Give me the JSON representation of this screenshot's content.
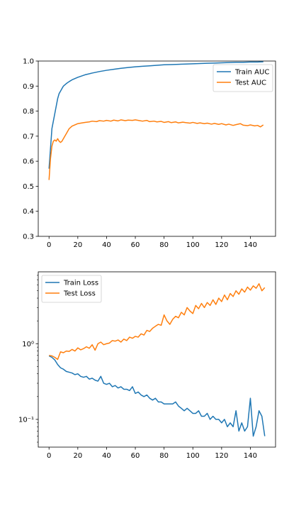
{
  "colors": {
    "series_1": "#1f77b4",
    "series_2": "#ff7f0e"
  },
  "chart_data": [
    {
      "type": "line",
      "title": "",
      "xlabel": "",
      "ylabel": "",
      "xlim": [
        -7.5,
        157.5
      ],
      "ylim": [
        0.3,
        1.0
      ],
      "yscale": "linear",
      "xticks": [
        0,
        20,
        40,
        60,
        80,
        100,
        120,
        140
      ],
      "yticks": [
        0.3,
        0.4,
        0.5,
        0.6,
        0.7,
        0.8,
        0.9,
        1.0
      ],
      "ytick_labels": [
        "0.3",
        "0.4",
        "0.5",
        "0.6",
        "0.7",
        "0.8",
        "0.9",
        "1.0"
      ],
      "legend": "top-right",
      "grid": false,
      "series": [
        {
          "name": "Train AUC",
          "color": "#1f77b4",
          "x": [
            0,
            1,
            2,
            3,
            4,
            5,
            6,
            7,
            8,
            9,
            10,
            12,
            14,
            16,
            18,
            20,
            25,
            30,
            35,
            40,
            45,
            50,
            55,
            60,
            65,
            70,
            75,
            80,
            85,
            90,
            95,
            100,
            105,
            110,
            115,
            120,
            125,
            130,
            135,
            140,
            145,
            149
          ],
          "y": [
            0.57,
            0.65,
            0.73,
            0.76,
            0.79,
            0.82,
            0.85,
            0.87,
            0.88,
            0.89,
            0.9,
            0.91,
            0.918,
            0.925,
            0.93,
            0.935,
            0.945,
            0.952,
            0.958,
            0.963,
            0.967,
            0.971,
            0.974,
            0.977,
            0.979,
            0.981,
            0.983,
            0.985,
            0.986,
            0.987,
            0.988,
            0.989,
            0.99,
            0.991,
            0.992,
            0.993,
            0.994,
            0.995,
            0.995,
            0.996,
            0.996,
            0.997
          ]
        },
        {
          "name": "Test AUC",
          "color": "#ff7f0e",
          "x": [
            0,
            1,
            2,
            3,
            4,
            5,
            6,
            7,
            8,
            9,
            10,
            12,
            14,
            16,
            18,
            20,
            22,
            25,
            28,
            30,
            33,
            35,
            38,
            40,
            43,
            45,
            48,
            50,
            53,
            55,
            58,
            60,
            63,
            65,
            68,
            70,
            73,
            75,
            78,
            80,
            83,
            85,
            88,
            90,
            93,
            95,
            98,
            100,
            103,
            105,
            108,
            110,
            113,
            115,
            118,
            120,
            123,
            125,
            128,
            130,
            133,
            135,
            138,
            140,
            143,
            145,
            147,
            149
          ],
          "y": [
            0.525,
            0.61,
            0.66,
            0.68,
            0.685,
            0.68,
            0.69,
            0.68,
            0.675,
            0.68,
            0.69,
            0.71,
            0.73,
            0.74,
            0.745,
            0.75,
            0.752,
            0.755,
            0.757,
            0.76,
            0.758,
            0.762,
            0.76,
            0.763,
            0.76,
            0.764,
            0.761,
            0.765,
            0.762,
            0.764,
            0.763,
            0.765,
            0.762,
            0.76,
            0.763,
            0.758,
            0.76,
            0.757,
            0.759,
            0.755,
            0.758,
            0.754,
            0.757,
            0.753,
            0.756,
            0.754,
            0.752,
            0.755,
            0.751,
            0.753,
            0.75,
            0.752,
            0.748,
            0.751,
            0.747,
            0.75,
            0.745,
            0.748,
            0.743,
            0.746,
            0.75,
            0.744,
            0.742,
            0.745,
            0.741,
            0.743,
            0.737,
            0.745
          ]
        }
      ]
    },
    {
      "type": "line",
      "title": "",
      "xlabel": "",
      "ylabel": "",
      "xlim": [
        -7.5,
        157.5
      ],
      "ylim": [
        0.043,
        8.9
      ],
      "yscale": "log",
      "xticks": [
        0,
        20,
        40,
        60,
        80,
        100,
        120,
        140
      ],
      "yticks": [
        0.1,
        1.0
      ],
      "ytick_labels": [
        "10⁻¹",
        "10⁰"
      ],
      "legend": "top-left",
      "grid": false,
      "series": [
        {
          "name": "Train Loss",
          "color": "#1f77b4",
          "x": [
            0,
            2,
            4,
            6,
            8,
            10,
            12,
            14,
            16,
            18,
            20,
            22,
            24,
            26,
            28,
            30,
            32,
            34,
            36,
            38,
            40,
            42,
            44,
            46,
            48,
            50,
            52,
            54,
            56,
            58,
            60,
            62,
            64,
            66,
            68,
            70,
            72,
            74,
            76,
            78,
            80,
            82,
            84,
            86,
            88,
            90,
            92,
            94,
            96,
            98,
            100,
            102,
            104,
            106,
            108,
            110,
            112,
            114,
            116,
            118,
            120,
            122,
            124,
            126,
            128,
            130,
            132,
            134,
            136,
            138,
            140,
            142,
            144,
            146,
            148,
            150
          ],
          "y": [
            0.69,
            0.66,
            0.61,
            0.53,
            0.48,
            0.46,
            0.43,
            0.42,
            0.41,
            0.39,
            0.4,
            0.37,
            0.36,
            0.37,
            0.34,
            0.35,
            0.33,
            0.32,
            0.37,
            0.3,
            0.29,
            0.3,
            0.27,
            0.28,
            0.26,
            0.27,
            0.25,
            0.25,
            0.24,
            0.27,
            0.22,
            0.23,
            0.21,
            0.2,
            0.21,
            0.19,
            0.18,
            0.19,
            0.17,
            0.17,
            0.16,
            0.16,
            0.16,
            0.16,
            0.17,
            0.15,
            0.14,
            0.13,
            0.14,
            0.13,
            0.12,
            0.12,
            0.13,
            0.11,
            0.11,
            0.12,
            0.1,
            0.11,
            0.1,
            0.1,
            0.09,
            0.1,
            0.08,
            0.09,
            0.08,
            0.13,
            0.07,
            0.09,
            0.07,
            0.08,
            0.19,
            0.06,
            0.08,
            0.13,
            0.11,
            0.06
          ]
        },
        {
          "name": "Test Loss",
          "color": "#ff7f0e",
          "x": [
            0,
            2,
            4,
            6,
            8,
            10,
            12,
            14,
            16,
            18,
            20,
            22,
            24,
            26,
            28,
            30,
            32,
            34,
            36,
            38,
            40,
            42,
            44,
            46,
            48,
            50,
            52,
            54,
            56,
            58,
            60,
            62,
            64,
            66,
            68,
            70,
            72,
            74,
            76,
            78,
            80,
            82,
            84,
            86,
            88,
            90,
            92,
            94,
            96,
            98,
            100,
            102,
            104,
            106,
            108,
            110,
            112,
            114,
            116,
            118,
            120,
            122,
            124,
            126,
            128,
            130,
            132,
            134,
            136,
            138,
            140,
            142,
            144,
            146,
            148,
            150
          ],
          "y": [
            0.7,
            0.69,
            0.66,
            0.62,
            0.78,
            0.76,
            0.8,
            0.79,
            0.84,
            0.8,
            0.88,
            0.83,
            0.86,
            0.91,
            0.87,
            0.97,
            0.82,
            1.0,
            1.05,
            0.97,
            1.0,
            1.02,
            1.1,
            1.08,
            1.12,
            1.05,
            1.15,
            1.1,
            1.22,
            1.18,
            1.25,
            1.22,
            1.35,
            1.3,
            1.5,
            1.45,
            1.6,
            1.7,
            1.8,
            1.75,
            2.4,
            2.0,
            1.8,
            2.1,
            2.3,
            2.2,
            2.6,
            2.4,
            3.0,
            2.7,
            2.5,
            3.2,
            2.9,
            3.4,
            3.0,
            3.5,
            3.2,
            3.8,
            3.3,
            4.0,
            3.6,
            4.4,
            3.8,
            4.6,
            4.2,
            5.0,
            4.5,
            5.3,
            4.8,
            5.6,
            5.1,
            5.8,
            5.4,
            6.2,
            5.0,
            5.5
          ]
        }
      ]
    }
  ]
}
